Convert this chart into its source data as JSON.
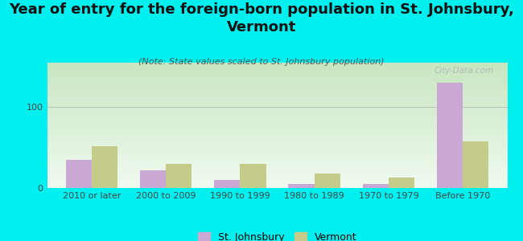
{
  "title": "Year of entry for the foreign-born population in St. Johnsbury,\nVermont",
  "subtitle": "(Note: State values scaled to St. Johnsbury population)",
  "categories": [
    "2010 or later",
    "2000 to 2009",
    "1990 to 1999",
    "1980 to 1989",
    "1970 to 1979",
    "Before 1970"
  ],
  "st_johnsbury": [
    35,
    22,
    10,
    5,
    5,
    130
  ],
  "vermont": [
    52,
    30,
    30,
    18,
    13,
    58
  ],
  "color_sj": "#c9a8d4",
  "color_vt": "#c5cc8a",
  "background_outer": "#00efef",
  "ylim": [
    0,
    155
  ],
  "yticks": [
    0,
    100
  ],
  "bar_width": 0.35,
  "watermark": "City-Data.com",
  "legend_label_sj": "St. Johnsbury",
  "legend_label_vt": "Vermont",
  "title_fontsize": 13,
  "subtitle_fontsize": 8,
  "tick_fontsize": 8
}
